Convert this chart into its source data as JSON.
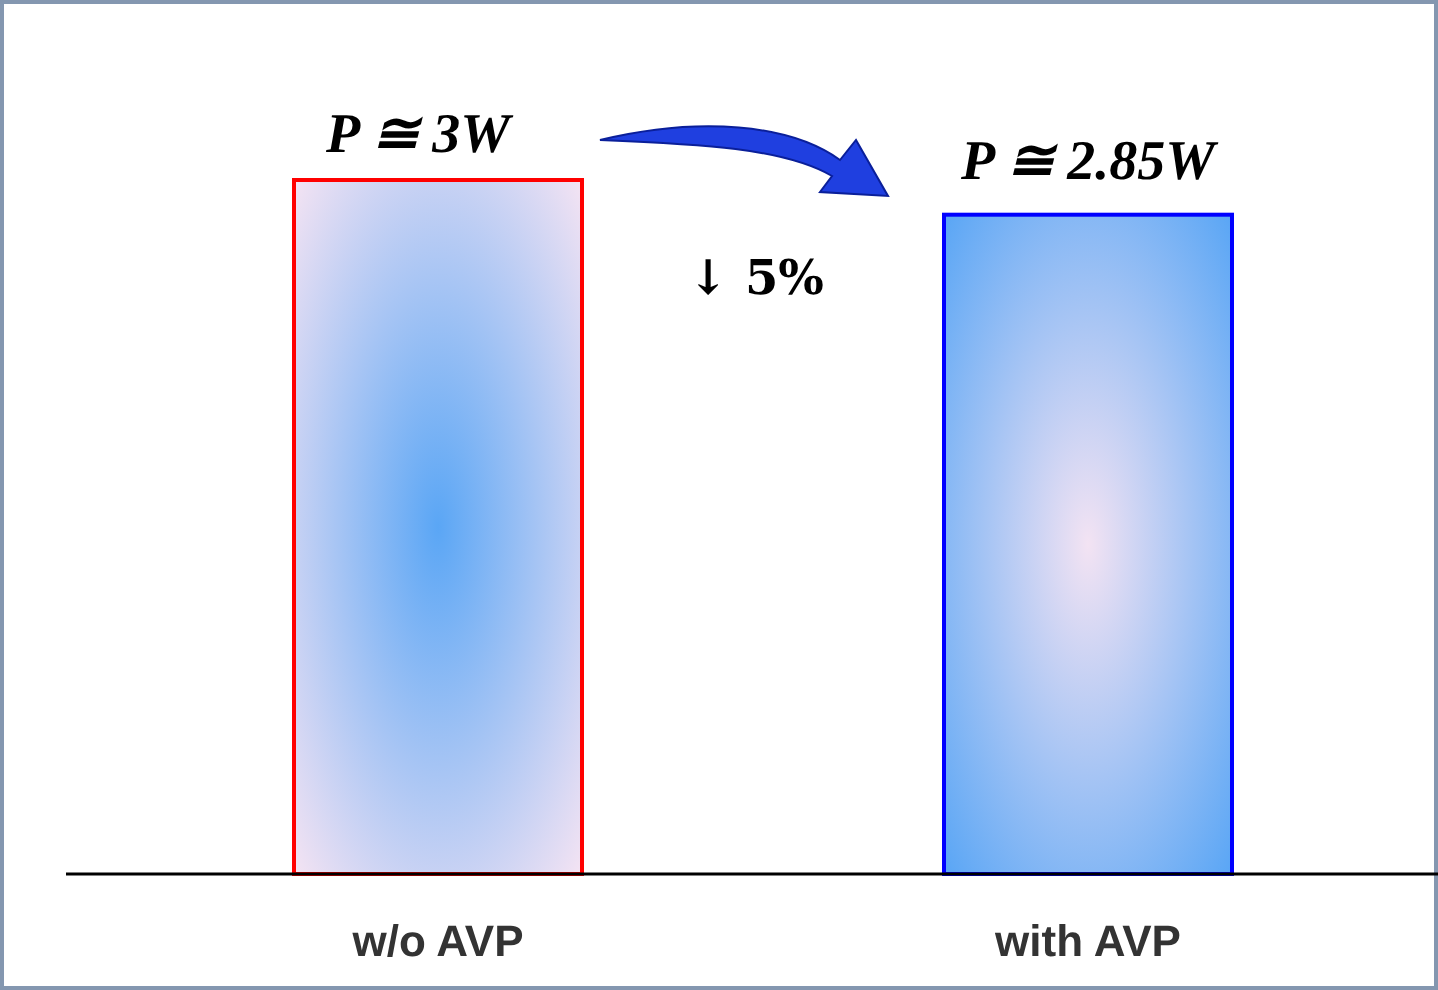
{
  "chart_data": {
    "type": "bar",
    "categories": [
      "w/o AVP",
      "with AVP"
    ],
    "values": [
      3,
      2.85
    ],
    "colors": [
      "#ff0000",
      "#0000ff"
    ],
    "value_labels": [
      "P ≅ 3W",
      "P ≅ 2.85W"
    ],
    "annotations": [
      "↓ 5%"
    ]
  }
}
